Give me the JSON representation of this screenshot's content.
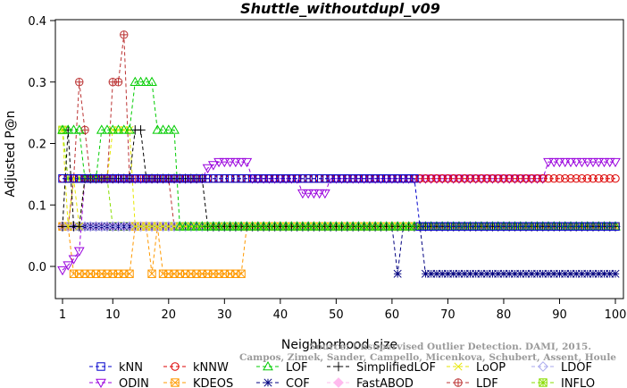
{
  "chart_data": {
    "type": "line",
    "title": "Shuttle_withoutdupl_v09",
    "xlabel": "Neighborhood size",
    "ylabel": "Adjusted P@n",
    "xlim": [
      1,
      100
    ],
    "ylim": [
      -0.03,
      0.4
    ],
    "xticks": [
      1,
      10,
      20,
      30,
      40,
      50,
      60,
      70,
      80,
      90,
      100
    ],
    "yticks": [
      0.0,
      0.1,
      0.2,
      0.3,
      0.4
    ],
    "ytick_labels": [
      "0.0",
      "0.1",
      "0.2",
      "0.3",
      "0.4"
    ],
    "grid": false,
    "legend_position": "bottom",
    "watermark": [
      "Source: Unsupervised Outlier Detection. DAMI, 2015.",
      "Campos, Zimek, Sander, Campello, Micenkova, Schubert, Assent, Houle"
    ],
    "series": [
      {
        "name": "kNN",
        "color": "#0000cc",
        "marker": "square",
        "segments": [
          [
            1,
            64,
            0.143
          ],
          [
            65,
            100,
            0.065
          ]
        ],
        "points": []
      },
      {
        "name": "kNNW",
        "color": "#dd0000",
        "marker": "circle",
        "segments": [
          [
            1,
            64,
            0.143
          ],
          [
            65,
            100,
            0.143
          ]
        ],
        "points": []
      },
      {
        "name": "LOF",
        "color": "#00cc00",
        "marker": "triangle-up",
        "segments": [
          [
            22,
            100,
            0.065
          ]
        ],
        "points": [
          [
            1,
            0.222
          ],
          [
            2,
            0.222
          ],
          [
            3,
            0.222
          ],
          [
            4,
            0.222
          ],
          [
            5,
            0.143
          ],
          [
            6,
            0.143
          ],
          [
            7,
            0.143
          ],
          [
            8,
            0.222
          ],
          [
            9,
            0.222
          ],
          [
            10,
            0.222
          ],
          [
            11,
            0.222
          ],
          [
            12,
            0.222
          ],
          [
            13,
            0.222
          ],
          [
            14,
            0.3
          ],
          [
            15,
            0.3
          ],
          [
            16,
            0.3
          ],
          [
            17,
            0.3
          ],
          [
            18,
            0.222
          ],
          [
            19,
            0.222
          ],
          [
            20,
            0.222
          ],
          [
            21,
            0.222
          ]
        ]
      },
      {
        "name": "SimplifiedLOF",
        "color": "#000000",
        "marker": "plus",
        "segments": [
          [
            16,
            26,
            0.143
          ],
          [
            27,
            100,
            0.065
          ]
        ],
        "points": [
          [
            1,
            0.065
          ],
          [
            2,
            0.222
          ],
          [
            3,
            0.065
          ],
          [
            4,
            0.065
          ],
          [
            5,
            0.143
          ],
          [
            6,
            0.143
          ],
          [
            7,
            0.143
          ],
          [
            8,
            0.143
          ],
          [
            9,
            0.143
          ],
          [
            10,
            0.143
          ],
          [
            11,
            0.143
          ],
          [
            12,
            0.143
          ],
          [
            13,
            0.143
          ],
          [
            14,
            0.222
          ],
          [
            15,
            0.222
          ]
        ]
      },
      {
        "name": "LoOP",
        "color": "#e6e600",
        "marker": "x",
        "segments": [
          [
            14,
            100,
            0.065
          ]
        ],
        "points": [
          [
            1,
            0.222
          ],
          [
            2,
            0.065
          ],
          [
            3,
            0.143
          ],
          [
            4,
            0.065
          ],
          [
            5,
            0.143
          ],
          [
            6,
            0.143
          ],
          [
            7,
            0.143
          ],
          [
            8,
            0.143
          ],
          [
            9,
            0.143
          ],
          [
            10,
            0.222
          ],
          [
            11,
            0.222
          ],
          [
            12,
            0.222
          ],
          [
            13,
            0.222
          ]
        ]
      },
      {
        "name": "LDOF",
        "color": "#aaaaee",
        "marker": "diamond",
        "segments": [
          [
            12,
            100,
            0.065
          ]
        ],
        "points": [
          [
            1,
            0.065
          ],
          [
            2,
            0.065
          ],
          [
            3,
            0.065
          ],
          [
            4,
            0.065
          ],
          [
            5,
            0.065
          ],
          [
            6,
            0.065
          ],
          [
            7,
            0.065
          ],
          [
            8,
            0.065
          ],
          [
            9,
            0.065
          ],
          [
            10,
            0.065
          ],
          [
            11,
            0.065
          ]
        ]
      },
      {
        "name": "ODIN",
        "color": "#9900dd",
        "marker": "triangle-down",
        "segments": [
          [
            5,
            26,
            0.143
          ],
          [
            35,
            43,
            0.143
          ],
          [
            49,
            87,
            0.143
          ],
          [
            89,
            100,
            0.17
          ]
        ],
        "points": [
          [
            1,
            -0.006
          ],
          [
            2,
            0.002
          ],
          [
            3,
            0.012
          ],
          [
            4,
            0.025
          ],
          [
            27,
            0.16
          ],
          [
            28,
            0.165
          ],
          [
            29,
            0.17
          ],
          [
            30,
            0.17
          ],
          [
            31,
            0.17
          ],
          [
            32,
            0.17
          ],
          [
            33,
            0.17
          ],
          [
            34,
            0.17
          ],
          [
            44,
            0.119
          ],
          [
            45,
            0.119
          ],
          [
            46,
            0.119
          ],
          [
            47,
            0.119
          ],
          [
            48,
            0.119
          ],
          [
            88,
            0.17
          ]
        ]
      },
      {
        "name": "KDEOS",
        "color": "#ff9900",
        "marker": "square-x",
        "segments": [
          [
            3,
            13,
            -0.012
          ],
          [
            14,
            16,
            0.065
          ],
          [
            17,
            17,
            -0.012
          ],
          [
            18,
            18,
            0.065
          ],
          [
            19,
            33,
            -0.012
          ],
          [
            34,
            100,
            0.065
          ]
        ],
        "points": [
          [
            1,
            0.065
          ],
          [
            2,
            0.065
          ]
        ]
      },
      {
        "name": "COF",
        "color": "#000080",
        "marker": "asterisk",
        "segments": [
          [
            1,
            60,
            0.065
          ],
          [
            62,
            65,
            0.065
          ],
          [
            66,
            100,
            -0.012
          ]
        ],
        "points": [
          [
            61,
            -0.012
          ]
        ]
      },
      {
        "name": "FastABOD",
        "color": "#ffbbee",
        "marker": "diamond-filled",
        "segments": [
          [
            1,
            100,
            0.065
          ]
        ],
        "points": []
      },
      {
        "name": "LDF",
        "color": "#bb3333",
        "marker": "circle-plus",
        "segments": [
          [
            13,
            20,
            0.143
          ],
          [
            21,
            100,
            0.065
          ]
        ],
        "points": [
          [
            1,
            0.065
          ],
          [
            2,
            0.065
          ],
          [
            3,
            0.143
          ],
          [
            4,
            0.3
          ],
          [
            5,
            0.222
          ],
          [
            6,
            0.143
          ],
          [
            7,
            0.143
          ],
          [
            8,
            0.143
          ],
          [
            9,
            0.143
          ],
          [
            10,
            0.3
          ],
          [
            11,
            0.3
          ],
          [
            12,
            0.377
          ]
        ]
      },
      {
        "name": "INFLO",
        "color": "#88dd00",
        "marker": "square-star",
        "segments": [
          [
            10,
            100,
            0.065
          ]
        ],
        "points": [
          [
            1,
            0.222
          ],
          [
            2,
            0.143
          ],
          [
            3,
            0.143
          ],
          [
            4,
            0.143
          ],
          [
            5,
            0.143
          ],
          [
            6,
            0.143
          ],
          [
            7,
            0.143
          ],
          [
            8,
            0.143
          ],
          [
            9,
            0.143
          ]
        ]
      }
    ]
  }
}
